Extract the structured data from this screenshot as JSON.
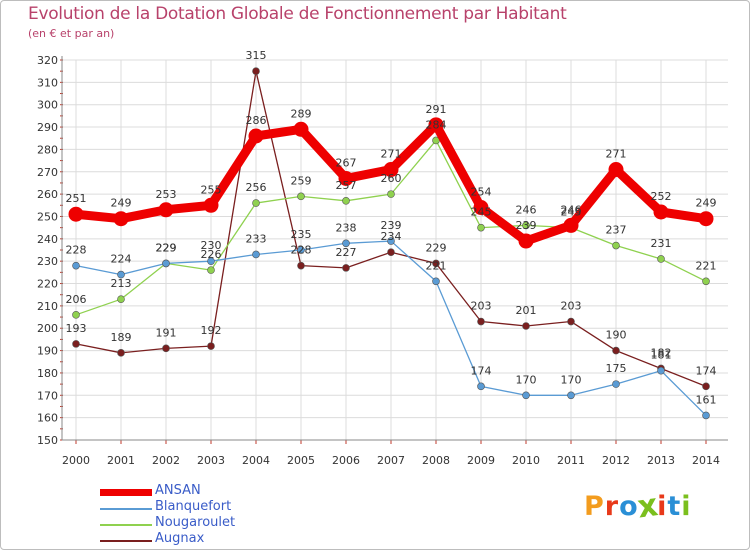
{
  "title": "Evolution de la Dotation Globale de Fonctionnement par Habitant",
  "subtitle": "(en € et par an)",
  "logo": {
    "text": "Proxiti",
    "colors": [
      "#f39c1e",
      "#e8391a",
      "#2a8fd6",
      "#7bbf1e",
      "#e8391a",
      "#2a8fd6",
      "#7bbf1e"
    ]
  },
  "chart_data": {
    "type": "line",
    "x": [
      2000,
      2001,
      2002,
      2003,
      2004,
      2005,
      2006,
      2007,
      2008,
      2009,
      2010,
      2011,
      2012,
      2013,
      2014
    ],
    "ylim": [
      150,
      320
    ],
    "yticks": [
      150,
      160,
      170,
      180,
      190,
      200,
      210,
      220,
      230,
      240,
      250,
      260,
      270,
      280,
      290,
      300,
      310,
      320
    ],
    "grid": true,
    "legend_position": "bottom-left",
    "series": [
      {
        "name": "ANSAN",
        "color": "#ee0000",
        "values": [
          251,
          249,
          253,
          255,
          286,
          289,
          267,
          271,
          291,
          254,
          239,
          246,
          271,
          252,
          249
        ],
        "labels": [
          "251",
          "249",
          "253",
          "255",
          "286",
          "289",
          "267",
          "271",
          "291",
          "254",
          "239",
          "246",
          "271",
          "252",
          "249"
        ]
      },
      {
        "name": "Blanquefort",
        "color": "#5a9bd4",
        "values": [
          228,
          224,
          229,
          230,
          233,
          235,
          238,
          239,
          221,
          174,
          170,
          170,
          175,
          181,
          161
        ],
        "labels": [
          "228",
          "224",
          "229",
          "230",
          "233",
          "235",
          "238",
          "239",
          "221",
          "174",
          "170",
          "170",
          "175",
          "181",
          "161"
        ]
      },
      {
        "name": "Nougaroulet",
        "color": "#8fd14f",
        "values": [
          206,
          213,
          229,
          226,
          256,
          259,
          257,
          260,
          284,
          245,
          246,
          245,
          237,
          231,
          221
        ],
        "labels": [
          "206",
          "213",
          "229",
          "226",
          "256",
          "259",
          "257",
          "260",
          "284",
          "245",
          "246",
          "245",
          "237",
          "231",
          "221"
        ]
      },
      {
        "name": "Augnax",
        "color": "#7a1f1f",
        "values": [
          193,
          189,
          191,
          192,
          315,
          228,
          227,
          234,
          229,
          203,
          201,
          203,
          190,
          182,
          174
        ],
        "labels": [
          "193",
          "189",
          "191",
          "192",
          "315",
          "228",
          "227",
          "234",
          "229",
          "203",
          "201",
          "203",
          "190",
          "182",
          "174"
        ]
      }
    ]
  }
}
